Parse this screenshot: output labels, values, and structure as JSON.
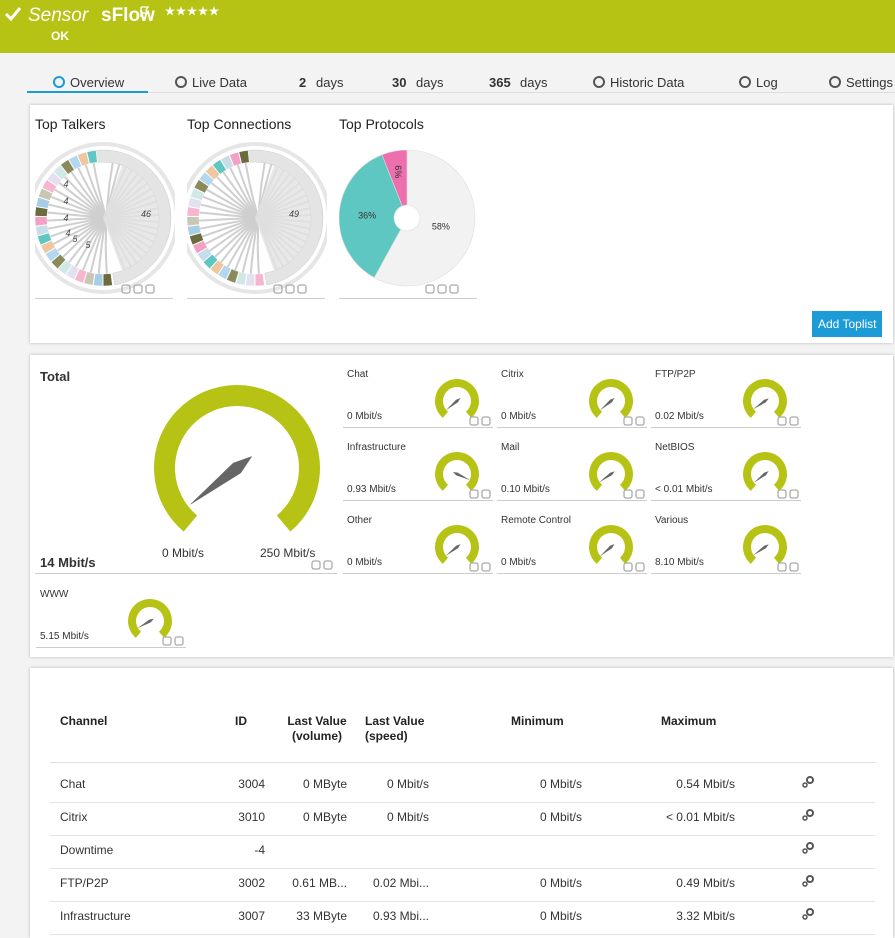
{
  "header": {
    "prefix": "Sensor",
    "title": "sFlow",
    "status": "OK"
  },
  "tabs": [
    {
      "label": "Overview"
    },
    {
      "label": "Live Data"
    },
    {
      "count": "2",
      "label": "days"
    },
    {
      "count": "30",
      "label": "days"
    },
    {
      "count": "365",
      "label": "days"
    },
    {
      "label": "Historic Data"
    },
    {
      "label": "Log"
    },
    {
      "label": "Settings"
    }
  ],
  "toplists": {
    "items": [
      {
        "title": "Top Talkers",
        "labels": [
          "46",
          "4",
          "4",
          "4",
          "4",
          "5",
          "5"
        ]
      },
      {
        "title": "Top Connections",
        "labels": [
          "49"
        ]
      },
      {
        "title": "Top Protocols",
        "slices": [
          {
            "value": 58,
            "label": "58%",
            "color": "#f2f2f2"
          },
          {
            "value": 36,
            "label": "36%",
            "color": "#5ec7c1"
          },
          {
            "value": 6,
            "label": "6%",
            "color": "#ee6fae"
          }
        ]
      }
    ],
    "button": "Add Toplist"
  },
  "gauges": {
    "total": {
      "title": "Total",
      "value": "14 Mbit/s",
      "min": "0 Mbit/s",
      "max": "250 Mbit/s"
    },
    "channels": [
      {
        "title": "Chat",
        "value": "0 Mbit/s"
      },
      {
        "title": "Citrix",
        "value": "0 Mbit/s"
      },
      {
        "title": "FTP/P2P",
        "value": "0.02 Mbit/s"
      },
      {
        "title": "Infrastructure",
        "value": "0.93 Mbit/s"
      },
      {
        "title": "Mail",
        "value": "0.10 Mbit/s"
      },
      {
        "title": "NetBIOS",
        "value": "< 0.01 Mbit/s"
      },
      {
        "title": "Other",
        "value": "0 Mbit/s"
      },
      {
        "title": "Remote Control",
        "value": "0 Mbit/s"
      },
      {
        "title": "Various",
        "value": "8.10 Mbit/s"
      },
      {
        "title": "WWW",
        "value": "5.15 Mbit/s"
      }
    ]
  },
  "table": {
    "columns": [
      "Channel",
      "ID",
      "Last Value (volume)",
      "Last Value (speed)",
      "Minimum",
      "Maximum"
    ],
    "rows": [
      {
        "channel": "Chat",
        "id": "3004",
        "volume": "0 MByte",
        "speed": "0 Mbit/s",
        "minimum": "0 Mbit/s",
        "maximum": "0.54 Mbit/s"
      },
      {
        "channel": "Citrix",
        "id": "3010",
        "volume": "0 MByte",
        "speed": "0 Mbit/s",
        "minimum": "0 Mbit/s",
        "maximum": "< 0.01 Mbit/s"
      },
      {
        "channel": "Downtime",
        "id": "-4"
      },
      {
        "channel": "FTP/P2P",
        "id": "3002",
        "volume": "0.61 MB...",
        "speed": "0.02 Mbi...",
        "minimum": "0 Mbit/s",
        "maximum": "0.49 Mbit/s"
      },
      {
        "channel": "Infrastructure",
        "id": "3007",
        "volume": "33 MByte",
        "speed": "0.93 Mbi...",
        "minimum": "0 Mbit/s",
        "maximum": "3.32 Mbit/s"
      }
    ]
  }
}
